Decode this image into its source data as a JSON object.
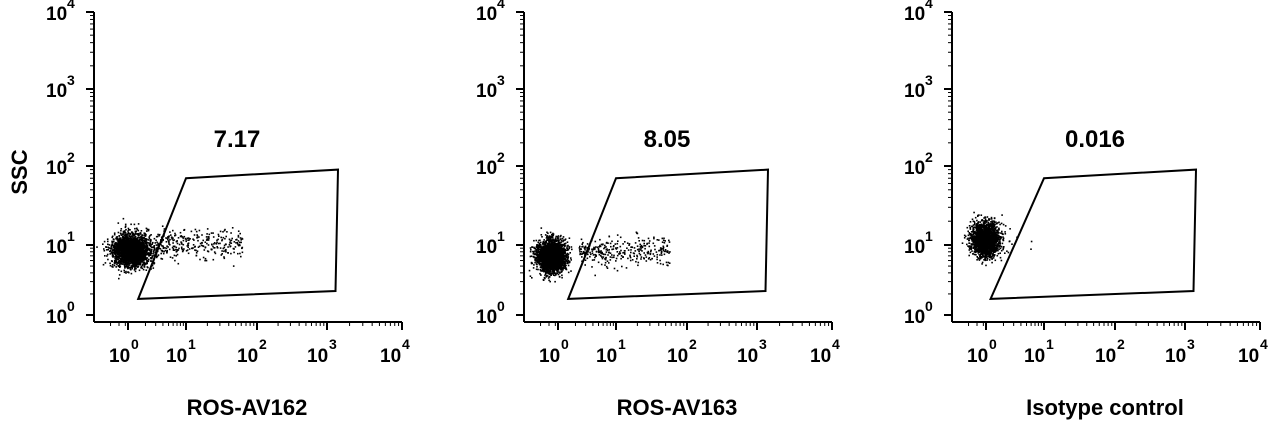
{
  "chart_data": [
    {
      "type": "scatter",
      "title": "",
      "xlabel": "ROS-AV162",
      "ylabel": "SSC",
      "xscale": "log",
      "yscale": "log",
      "xlim": [
        1,
        10000
      ],
      "ylim": [
        1,
        10000
      ],
      "x_ticks": [
        {
          "base": "10",
          "exp": "0"
        },
        {
          "base": "10",
          "exp": "1"
        },
        {
          "base": "10",
          "exp": "2"
        },
        {
          "base": "10",
          "exp": "3"
        },
        {
          "base": "10",
          "exp": "4"
        }
      ],
      "y_ticks": [
        {
          "base": "10",
          "exp": "0"
        },
        {
          "base": "10",
          "exp": "1"
        },
        {
          "base": "10",
          "exp": "2"
        },
        {
          "base": "10",
          "exp": "3"
        },
        {
          "base": "10",
          "exp": "4"
        }
      ],
      "gate_label": "7.17",
      "gate_percent": 7.17,
      "gate_polygon": [
        [
          1.5,
          1.7
        ],
        [
          10,
          70
        ],
        [
          1400,
          90
        ],
        [
          1300,
          2.2
        ]
      ],
      "populations": [
        {
          "role": "main",
          "count": 2600,
          "log_x_center": 0.05,
          "log_y_center": 0.93,
          "log_x_sd": 0.16,
          "log_y_sd": 0.11
        },
        {
          "role": "gated",
          "count": 300,
          "log_x_range": [
            0.45,
            1.8
          ],
          "log_y_center": 1.02,
          "log_y_sd": 0.1
        }
      ]
    },
    {
      "type": "scatter",
      "title": "",
      "xlabel": "ROS-AV163",
      "ylabel": "",
      "xscale": "log",
      "yscale": "log",
      "xlim": [
        1,
        10000
      ],
      "ylim": [
        1,
        10000
      ],
      "x_ticks": [
        {
          "base": "10",
          "exp": "0"
        },
        {
          "base": "10",
          "exp": "1"
        },
        {
          "base": "10",
          "exp": "2"
        },
        {
          "base": "10",
          "exp": "3"
        },
        {
          "base": "10",
          "exp": "4"
        }
      ],
      "y_ticks": [
        {
          "base": "10",
          "exp": "0"
        },
        {
          "base": "10",
          "exp": "1"
        },
        {
          "base": "10",
          "exp": "2"
        },
        {
          "base": "10",
          "exp": "3"
        },
        {
          "base": "10",
          "exp": "4"
        }
      ],
      "gate_label": "8.05",
      "gate_percent": 8.05,
      "gate_polygon": [
        [
          1.5,
          1.7
        ],
        [
          10,
          70
        ],
        [
          1400,
          90
        ],
        [
          1300,
          2.2
        ]
      ],
      "populations": [
        {
          "role": "main",
          "count": 2600,
          "log_x_center": -0.12,
          "log_y_center": 0.85,
          "log_x_sd": 0.12,
          "log_y_sd": 0.11
        },
        {
          "role": "gated",
          "count": 320,
          "log_x_range": [
            0.35,
            1.75
          ],
          "log_y_center": 0.92,
          "log_y_sd": 0.1
        }
      ]
    },
    {
      "type": "scatter",
      "title": "",
      "xlabel": "Isotype control",
      "ylabel": "",
      "xscale": "log",
      "yscale": "log",
      "xlim": [
        1,
        10000
      ],
      "ylim": [
        1,
        10000
      ],
      "x_ticks": [
        {
          "base": "10",
          "exp": "0"
        },
        {
          "base": "10",
          "exp": "1"
        },
        {
          "base": "10",
          "exp": "2"
        },
        {
          "base": "10",
          "exp": "3"
        },
        {
          "base": "10",
          "exp": "4"
        }
      ],
      "y_ticks": [
        {
          "base": "10",
          "exp": "0"
        },
        {
          "base": "10",
          "exp": "1"
        },
        {
          "base": "10",
          "exp": "2"
        },
        {
          "base": "10",
          "exp": "3"
        },
        {
          "base": "10",
          "exp": "4"
        }
      ],
      "gate_label": "0.016",
      "gate_percent": 0.016,
      "gate_polygon": [
        [
          1.2,
          1.7
        ],
        [
          10,
          70
        ],
        [
          1400,
          90
        ],
        [
          1300,
          2.2
        ]
      ],
      "populations": [
        {
          "role": "main",
          "count": 2000,
          "log_x_center": -0.02,
          "log_y_center": 1.08,
          "log_x_sd": 0.12,
          "log_y_sd": 0.11
        },
        {
          "role": "gated",
          "count": 3,
          "log_x_range": [
            0.5,
            1.0
          ],
          "log_y_center": 1.1,
          "log_y_sd": 0.1
        }
      ]
    }
  ],
  "colors": {
    "dots": "#000000",
    "axes": "#000000",
    "background": "#ffffff"
  }
}
